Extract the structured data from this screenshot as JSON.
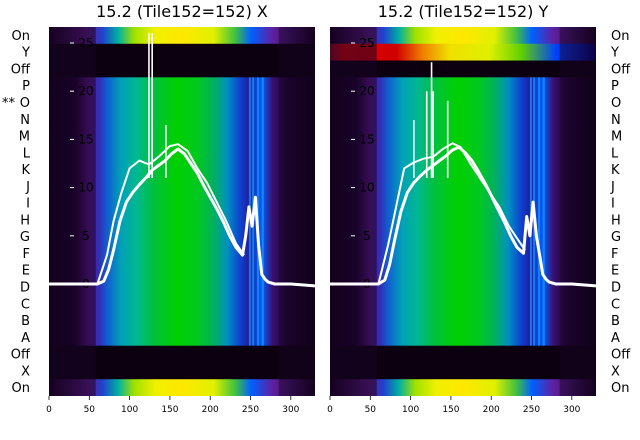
{
  "chart_data": [
    {
      "type": "heatmap",
      "title": "15.2 (Tile152=152) X",
      "xlabel": "",
      "ylabel": "",
      "xlim": [
        0,
        330
      ],
      "x_ticks": [
        "0",
        "50",
        "100",
        "150",
        "200",
        "250",
        "300"
      ],
      "row_labels": [
        "On",
        "Y",
        "Off",
        "P",
        "O",
        "N",
        "M",
        "L",
        "K",
        "J",
        "I",
        "H",
        "G",
        "F",
        "E",
        "D",
        "C",
        "B",
        "A",
        "Off",
        "X",
        "On"
      ],
      "row_marker": {
        "row": "O",
        "text": "**"
      },
      "overlay": {
        "type": "line",
        "color": "#ffffff",
        "ylim": [
          0,
          26
        ],
        "y_ticks": [
          "0",
          "5",
          "10",
          "15",
          "20",
          "25"
        ],
        "series": [
          {
            "x": [
              0,
              60,
              68,
              74,
              80,
              88,
              96,
              104,
              112,
              120,
              128,
              136,
              144,
              152,
              160,
              168,
              176,
              184,
              192,
              200,
              208,
              216,
              224,
              232,
              240,
              244,
              248,
              252,
              256,
              260,
              264,
              268,
              272,
              280,
              300,
              330
            ],
            "y": [
              0,
              0,
              0.3,
              1.5,
              3.5,
              6.5,
              8.5,
              9.5,
              10.3,
              11,
              11.8,
              12.3,
              12.8,
              13.5,
              14,
              13.5,
              12.5,
              11.5,
              10.2,
              9,
              7.8,
              6.5,
              5,
              3.8,
              3,
              5,
              8,
              6,
              9,
              4,
              1,
              0.5,
              0.2,
              0,
              0,
              -0.2
            ]
          },
          {
            "x": [
              60,
              72,
              80,
              90,
              100,
              112,
              124,
              136,
              150,
              160,
              172,
              184,
              196,
              208,
              220,
              232,
              242
            ],
            "y": [
              0,
              3,
              6.5,
              9.5,
              12,
              12.8,
              12.4,
              13.2,
              14.3,
              14.5,
              13.8,
              12,
              10.5,
              8.5,
              6.5,
              4.2,
              3
            ]
          }
        ],
        "spikes": [
          {
            "x": 124,
            "y": 26
          },
          {
            "x": 128,
            "y": 26
          },
          {
            "x": 145,
            "y": 16.5
          }
        ]
      }
    },
    {
      "type": "heatmap",
      "title": "15.2 (Tile152=152) Y",
      "xlabel": "",
      "ylabel": "",
      "xlim": [
        0,
        330
      ],
      "x_ticks": [
        "0",
        "50",
        "100",
        "150",
        "200",
        "250",
        "300"
      ],
      "row_labels": [
        "On",
        "Y",
        "Off",
        "P",
        "O",
        "N",
        "M",
        "L",
        "K",
        "J",
        "I",
        "H",
        "G",
        "F",
        "E",
        "D",
        "C",
        "B",
        "A",
        "Off",
        "X",
        "On"
      ],
      "overlay": {
        "type": "line",
        "color": "#ffffff",
        "ylim": [
          0,
          26
        ],
        "y_ticks": [
          "0",
          "5",
          "10",
          "15",
          "20",
          "25"
        ],
        "series": [
          {
            "x": [
              0,
              60,
              68,
              74,
              80,
              88,
              96,
              104,
              112,
              120,
              128,
              136,
              144,
              152,
              160,
              168,
              176,
              184,
              192,
              200,
              208,
              216,
              224,
              232,
              240,
              244,
              248,
              252,
              256,
              260,
              264,
              268,
              272,
              280,
              300,
              330
            ],
            "y": [
              0,
              0,
              0.4,
              2,
              4.5,
              7.5,
              9.5,
              10.5,
              11.2,
              11.8,
              12.3,
              12.8,
              13.3,
              13.9,
              14.2,
              13.6,
              12.8,
              11.7,
              10.5,
              9.2,
              7.8,
              6.5,
              5,
              3.8,
              3.2,
              7,
              5,
              8.5,
              5,
              3,
              1,
              0.5,
              0.2,
              0,
              0,
              -0.2
            ]
          },
          {
            "x": [
              60,
              72,
              82,
              92,
              104,
              116,
              128,
              140,
              152,
              162,
              174,
              186,
              198,
              210,
              222,
              234,
              242
            ],
            "y": [
              0,
              4,
              8,
              12,
              12.6,
              13,
              13.2,
              14,
              14.6,
              14.2,
              12.5,
              11,
              9.5,
              8,
              6,
              4.5,
              3.5
            ]
          }
        ],
        "spikes": [
          {
            "x": 104,
            "y": 17
          },
          {
            "x": 120,
            "y": 20
          },
          {
            "x": 126,
            "y": 23
          },
          {
            "x": 128,
            "y": 20
          },
          {
            "x": 146,
            "y": 19
          }
        ]
      }
    }
  ]
}
